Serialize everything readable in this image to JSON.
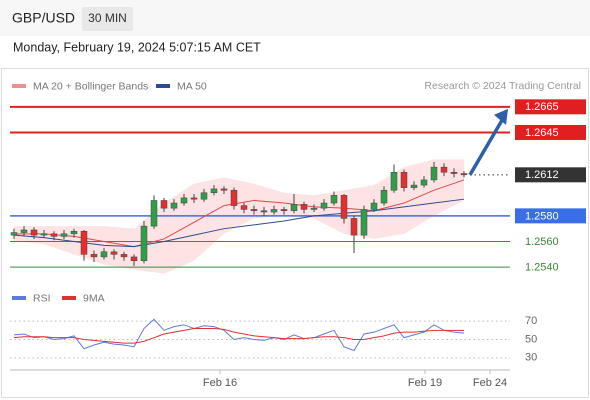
{
  "chart_data": [
    {
      "type": "candlestick",
      "title": "GBP/USD",
      "timeframe": "30 MIN",
      "subtitle": "Monday, February 19, 2024 5:07:15 AM CET",
      "source": "Research © 2024 Trading Central",
      "up_color": "#2e9e4a",
      "down_color": "#e03030",
      "xlim": [
        -0.4,
        49.6
      ],
      "ylim": [
        1.253,
        1.2675
      ],
      "open": [
        1.2565,
        1.2567,
        1.2569,
        1.2565,
        1.2566,
        1.2564,
        1.2566,
        1.2568,
        1.255,
        1.2548,
        1.2552,
        1.255,
        1.2548,
        1.2545,
        1.2572,
        1.2592,
        1.2586,
        1.259,
        1.2594,
        1.2593,
        1.2598,
        1.2601,
        1.26,
        1.2588,
        1.2585,
        1.2584,
        1.2583,
        1.2585,
        1.2584,
        1.2589,
        1.2585,
        1.2586,
        1.259,
        1.2596,
        1.2578,
        1.2565,
        1.2585,
        1.259,
        1.26,
        1.2614,
        1.2602,
        1.2604,
        1.2608,
        1.2618,
        1.2614,
        1.2613
      ],
      "high": [
        1.257,
        1.2572,
        1.2571,
        1.2569,
        1.2568,
        1.2569,
        1.257,
        1.2569,
        1.2553,
        1.2555,
        1.2554,
        1.2552,
        1.255,
        1.2576,
        1.2596,
        1.2594,
        1.2593,
        1.2597,
        1.2597,
        1.2601,
        1.2604,
        1.2603,
        1.2602,
        1.259,
        1.2588,
        1.2587,
        1.2588,
        1.2587,
        1.2597,
        1.2591,
        1.2589,
        1.2593,
        1.2599,
        1.2597,
        1.258,
        1.2588,
        1.2593,
        1.2603,
        1.262,
        1.2616,
        1.2607,
        1.2611,
        1.2622,
        1.2621,
        1.2617,
        1.2615
      ],
      "low": [
        1.2562,
        1.2564,
        1.2562,
        1.2563,
        1.2561,
        1.2562,
        1.2563,
        1.2545,
        1.2544,
        1.2546,
        1.2546,
        1.2545,
        1.2541,
        1.2543,
        1.257,
        1.2583,
        1.2584,
        1.2588,
        1.259,
        1.2591,
        1.2596,
        1.2597,
        1.2585,
        1.2582,
        1.2581,
        1.258,
        1.2581,
        1.2581,
        1.2582,
        1.2582,
        1.2583,
        1.2584,
        1.2588,
        1.2574,
        1.2551,
        1.2562,
        1.2583,
        1.2588,
        1.2598,
        1.2599,
        1.26,
        1.2602,
        1.2606,
        1.2611,
        1.261,
        1.261
      ],
      "close": [
        1.2567,
        1.2569,
        1.2565,
        1.2566,
        1.2564,
        1.2566,
        1.2568,
        1.255,
        1.2548,
        1.2552,
        1.255,
        1.2548,
        1.2545,
        1.2572,
        1.2592,
        1.2586,
        1.259,
        1.2594,
        1.2593,
        1.2598,
        1.2601,
        1.26,
        1.2588,
        1.2585,
        1.2584,
        1.2583,
        1.2585,
        1.2584,
        1.2589,
        1.2585,
        1.2586,
        1.259,
        1.2596,
        1.2578,
        1.2565,
        1.2585,
        1.259,
        1.26,
        1.2614,
        1.2602,
        1.2604,
        1.2608,
        1.2618,
        1.2614,
        1.2613,
        1.2612
      ],
      "series": [
        {
          "name": "MA 20 + Bollinger Bands",
          "color": "#e04848",
          "band_color": "#fde3e3",
          "x": [
            0,
            3,
            6,
            9,
            12,
            15,
            18,
            21,
            24,
            27,
            30,
            33,
            36,
            39,
            42,
            45
          ],
          "values": [
            1.2566,
            1.2566,
            1.2564,
            1.256,
            1.2556,
            1.2562,
            1.2575,
            1.2588,
            1.2592,
            1.259,
            1.2587,
            1.2586,
            1.2584,
            1.259,
            1.26,
            1.2608
          ],
          "upper": [
            1.2572,
            1.2572,
            1.2572,
            1.2572,
            1.257,
            1.259,
            1.2605,
            1.261,
            1.2605,
            1.2598,
            1.2596,
            1.26,
            1.2604,
            1.2618,
            1.2624,
            1.2624
          ],
          "lower": [
            1.256,
            1.2558,
            1.255,
            1.2542,
            1.2538,
            1.2535,
            1.2545,
            1.2566,
            1.2578,
            1.258,
            1.2578,
            1.2566,
            1.2562,
            1.2566,
            1.258,
            1.2592
          ]
        },
        {
          "name": "MA 50",
          "color": "#2e4b8f",
          "x": [
            0,
            3,
            6,
            9,
            12,
            15,
            18,
            21,
            24,
            27,
            30,
            33,
            36,
            39,
            42,
            45
          ],
          "values": [
            1.2565,
            1.2563,
            1.256,
            1.2557,
            1.2556,
            1.256,
            1.2565,
            1.257,
            1.2573,
            1.2576,
            1.258,
            1.2582,
            1.2584,
            1.2587,
            1.259,
            1.2593
          ]
        }
      ],
      "levels": [
        {
          "price": 1.2665,
          "color": "#e02020",
          "tag": true
        },
        {
          "price": 1.2645,
          "color": "#e02020",
          "tag": true
        },
        {
          "price": 1.2612,
          "color": "#333333",
          "tag": true,
          "dotted": true
        },
        {
          "price": {
            "value": 1.258,
            "label": "1.2580"
          },
          "color": "#3a6ee8",
          "tag": true
        },
        {
          "price": {
            "value": 1.256,
            "label": "1.2560"
          },
          "color": "#3a8a3a",
          "tag": false
        },
        {
          "price": {
            "value": 1.254,
            "label": "1.2540"
          },
          "color": "#3a8a3a",
          "tag": false
        }
      ]
    },
    {
      "type": "line",
      "xlim": [
        -0.4,
        49.6
      ],
      "ylim": [
        20,
        80
      ],
      "yticks": [
        30,
        50,
        70
      ],
      "xticks": [
        {
          "value": 20.6,
          "label": "Feb 16"
        },
        {
          "value": 41.1,
          "label": "Feb 19"
        },
        {
          "value": 47.6,
          "label": "Feb 24"
        }
      ],
      "series": [
        {
          "name": "RSI",
          "color": "#5b7be0",
          "values": [
            55,
            56,
            52,
            53,
            50,
            51,
            54,
            40,
            44,
            47,
            45,
            44,
            42,
            62,
            72,
            60,
            64,
            66,
            62,
            65,
            64,
            60,
            50,
            52,
            50,
            49,
            52,
            50,
            55,
            51,
            52,
            56,
            60,
            42,
            38,
            56,
            58,
            62,
            66,
            52,
            55,
            58,
            66,
            60,
            58,
            57
          ]
        },
        {
          "name": "9MA",
          "color": "#e03030",
          "values": [
            52,
            53,
            53,
            53,
            52,
            52,
            52,
            50,
            49,
            48,
            47,
            46,
            46,
            48,
            52,
            56,
            58,
            60,
            62,
            62,
            62,
            61,
            58,
            56,
            54,
            53,
            52,
            51,
            51,
            51,
            52,
            53,
            53,
            52,
            50,
            50,
            52,
            54,
            57,
            58,
            58,
            59,
            60,
            60,
            60,
            60
          ]
        }
      ]
    }
  ]
}
